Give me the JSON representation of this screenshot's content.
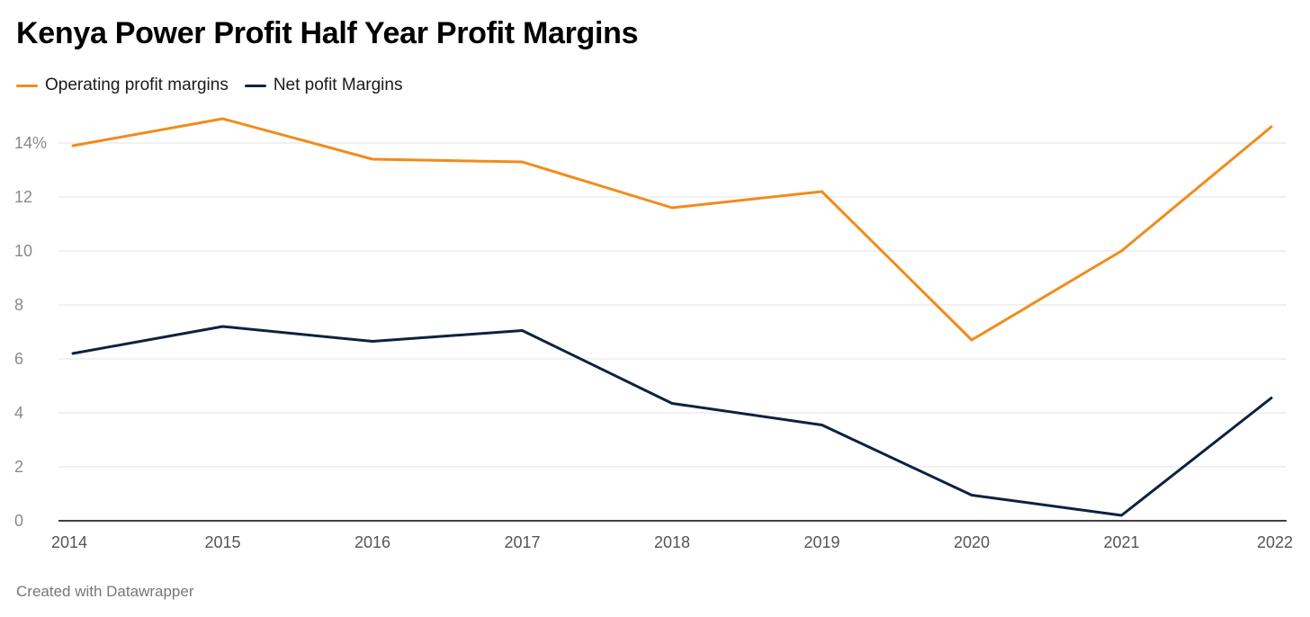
{
  "chart_data": {
    "type": "line",
    "title": "Kenya Power Profit Half Year Profit Margins",
    "xlabel": "",
    "ylabel": "",
    "x": [
      "2014",
      "2015",
      "2016",
      "2017",
      "2018",
      "2019",
      "2020",
      "2021",
      "2022"
    ],
    "y_ticks": [
      {
        "value": 0,
        "label": "0"
      },
      {
        "value": 2,
        "label": "2"
      },
      {
        "value": 4,
        "label": "4"
      },
      {
        "value": 6,
        "label": "6"
      },
      {
        "value": 8,
        "label": "8"
      },
      {
        "value": 10,
        "label": "10"
      },
      {
        "value": 12,
        "label": "12"
      },
      {
        "value": 14,
        "label": "14%"
      }
    ],
    "ylim": [
      0,
      14.6
    ],
    "grid": "horizontal",
    "legend_position": "top-left",
    "series": [
      {
        "name": "Operating profit margins",
        "color": "#f08c1a",
        "values": [
          13.9,
          14.9,
          13.4,
          13.3,
          11.6,
          12.2,
          6.7,
          10.0,
          14.6
        ]
      },
      {
        "name": "Net pofit Margins",
        "color": "#0d2240",
        "values": [
          6.2,
          7.2,
          6.65,
          7.05,
          4.35,
          3.55,
          0.95,
          0.2,
          4.55
        ]
      }
    ]
  },
  "footer": {
    "credit": "Created with Datawrapper"
  },
  "colors": {
    "grid": "#e3e3e3",
    "axis": "#000000",
    "tick_text": "#8a8a8a",
    "x_tick_text": "#555555"
  }
}
